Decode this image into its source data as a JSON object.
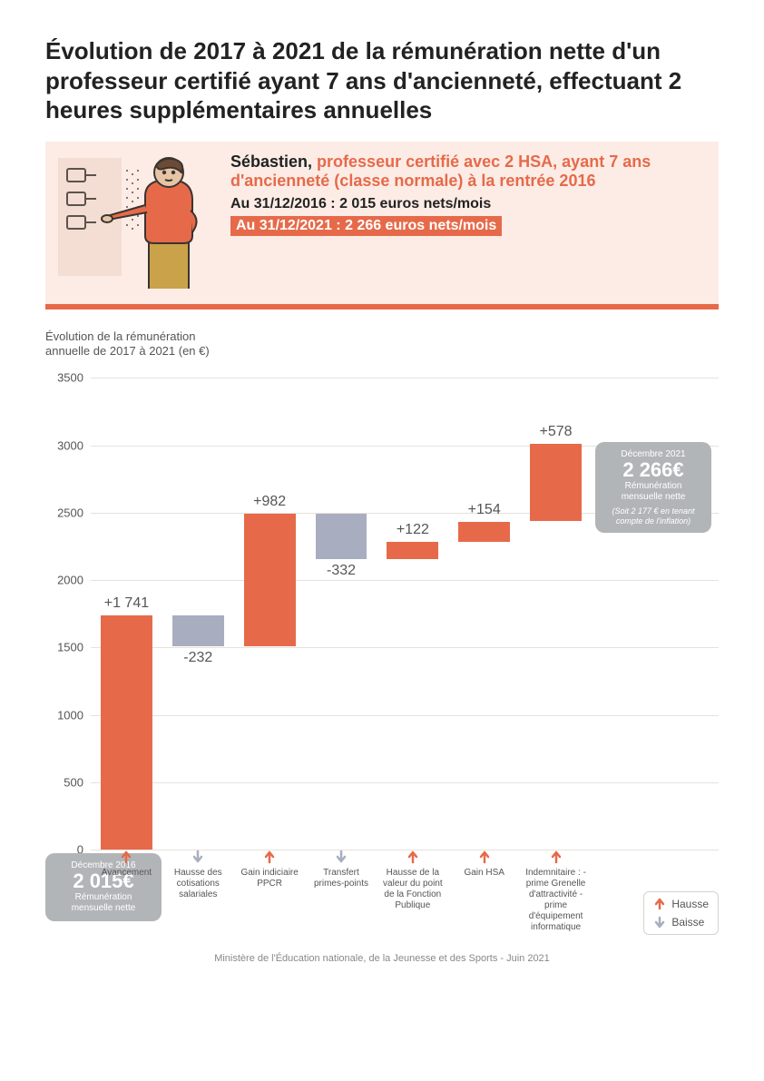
{
  "title": "Évolution de 2017 à 2021 de la rémunération nette d'un professeur certifié ayant 7 ans d'ancienneté, effectuant 2 heures supplémentaires annuelles",
  "persona": {
    "name": "Sébastien, ",
    "role": "professeur certifié avec 2 HSA, ayant 7 ans d'ancienneté (classe normale) à la rentrée 2016",
    "line1": "Au 31/12/2016 : 2 015 euros nets/mois",
    "line2": "Au 31/12/2021 : 2 266 euros nets/mois",
    "illu_colors": {
      "shirt": "#e66a4a",
      "pants": "#c9a24a",
      "skin": "#e7c4a6",
      "hair": "#6b4a36",
      "board": "#f4ddd3",
      "line": "#5a524c"
    }
  },
  "chart": {
    "subtitle": "Évolution de la rémunération annuelle de 2017 à 2021 (en €)",
    "type": "waterfall",
    "ylim": [
      0,
      3500
    ],
    "ytick_step": 500,
    "grid_color": "#e7e1db",
    "axis_fontsize": 13,
    "bar_label_fontsize": 16,
    "colors": {
      "increase": "#e66a4a",
      "decrease": "#a9adc0"
    },
    "bars": [
      {
        "label": "Avancement",
        "value": 1741,
        "type": "increase",
        "start": 0,
        "end": 1741,
        "display": "+1 741"
      },
      {
        "label": "Hausse des cotisations salariales",
        "value": -232,
        "type": "decrease",
        "start": 1741,
        "end": 1509,
        "display": "-232"
      },
      {
        "label": "Gain indiciaire PPCR",
        "value": 982,
        "type": "increase",
        "start": 1509,
        "end": 2491,
        "display": "+982"
      },
      {
        "label": "Transfert primes-points",
        "value": -332,
        "type": "decrease",
        "start": 2491,
        "end": 2159,
        "display": "-332"
      },
      {
        "label": "Hausse de la valeur du point de la Fonction Publique",
        "value": 122,
        "type": "increase",
        "start": 2159,
        "end": 2281,
        "display": "+122"
      },
      {
        "label": "Gain HSA",
        "value": 154,
        "type": "increase",
        "start": 2281,
        "end": 2435,
        "display": "+154"
      },
      {
        "label": "Indemnitaire : - prime Grenelle d'attractivité - prime d'équipement informatique",
        "value": 578,
        "type": "increase",
        "start": 2435,
        "end": 3013,
        "display": "+578"
      }
    ],
    "start_box": {
      "top": "Décembre 2016",
      "value": "2 015€",
      "sub": "Rémunération mensuelle nette"
    },
    "end_box": {
      "top": "Décembre 2021",
      "value": "2 266€",
      "sub": "Rémunération mensuelle nette",
      "note": "(Soit 2 177 € en tenant compte de l'inflation)"
    },
    "legend": {
      "up": "Hausse",
      "down": "Baisse"
    }
  },
  "footer": "Ministère de l'Éducation nationale, de la Jeunesse et des Sports - Juin 2021"
}
